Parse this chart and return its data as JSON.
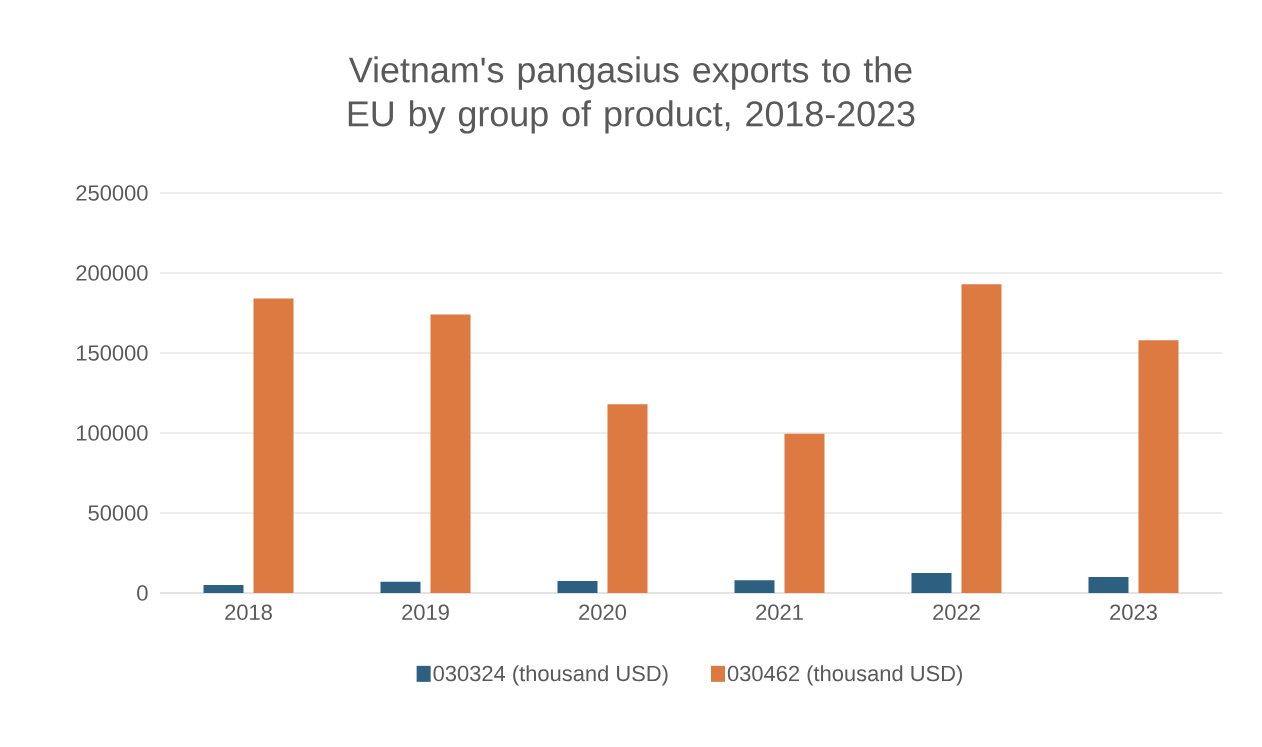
{
  "chart_data": {
    "type": "bar",
    "title": "Vietnam's pangasius exports to the EU by group of product, 2018-2023",
    "categories": [
      "2018",
      "2019",
      "2020",
      "2021",
      "2022",
      "2023"
    ],
    "series": [
      {
        "name": "030324 (thousand USD)",
        "color": "#2d5f80",
        "values": [
          5000,
          7000,
          7500,
          8000,
          12500,
          10000
        ]
      },
      {
        "name": "030462 (thousand USD)",
        "color": "#dc7a42",
        "values": [
          184000,
          174000,
          118000,
          99500,
          193000,
          158000
        ]
      }
    ],
    "ylim": [
      0,
      250000
    ],
    "yticks": [
      0,
      50000,
      100000,
      150000,
      200000,
      250000
    ],
    "grid": "y",
    "legend": "bottom"
  }
}
